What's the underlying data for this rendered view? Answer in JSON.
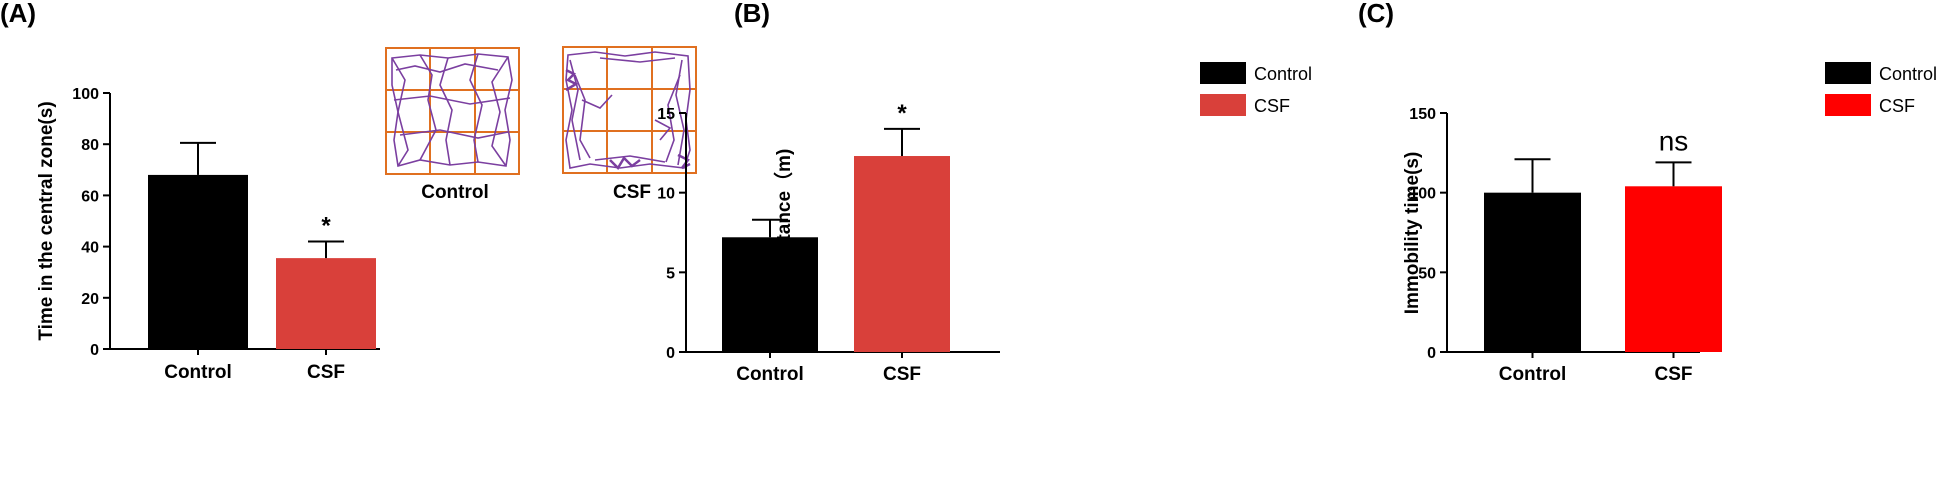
{
  "colors": {
    "control": "#000000",
    "csf_a": "#d9403a",
    "csf_b": "#d9403a",
    "csf_c": "#ff0000",
    "maze_grid": "#e07020",
    "maze_track": "#7b3fa0",
    "axis": "#000000"
  },
  "insets": [
    {
      "label": "Control",
      "pattern": "peripheral-track"
    },
    {
      "label": "CSF",
      "pattern": "peripheral-track-clustered"
    }
  ],
  "chart_data": [
    {
      "panel_label": "(A)",
      "type": "bar",
      "categories": [
        "Control",
        "CSF"
      ],
      "values": [
        68,
        35.5
      ],
      "errors": [
        12.5,
        6.5
      ],
      "significance": [
        "",
        "*"
      ],
      "ylabel": "Time in the central  zone(s)",
      "ylim": [
        0,
        100
      ],
      "yticks": [
        0,
        20,
        40,
        60,
        80,
        100
      ],
      "legend": []
    },
    {
      "panel_label": "(B)",
      "type": "bar",
      "categories": [
        "Control",
        "CSF"
      ],
      "values": [
        7.2,
        12.3
      ],
      "errors": [
        1.1,
        1.7
      ],
      "significance": [
        "",
        "*"
      ],
      "ylabel": "Total distance（m)",
      "ylim": [
        0,
        15
      ],
      "yticks": [
        0,
        5,
        10,
        15
      ],
      "legend": [
        "Control",
        "CSF"
      ]
    },
    {
      "panel_label": "(C)",
      "type": "bar",
      "categories": [
        "Control",
        "CSF"
      ],
      "values": [
        100,
        104
      ],
      "errors": [
        21,
        15
      ],
      "significance": [
        "",
        "ns"
      ],
      "ylabel": "Immobility time(s)",
      "ylim": [
        0,
        150
      ],
      "yticks": [
        0,
        50,
        100,
        150
      ],
      "legend": [
        "Control",
        "CSF"
      ]
    }
  ]
}
